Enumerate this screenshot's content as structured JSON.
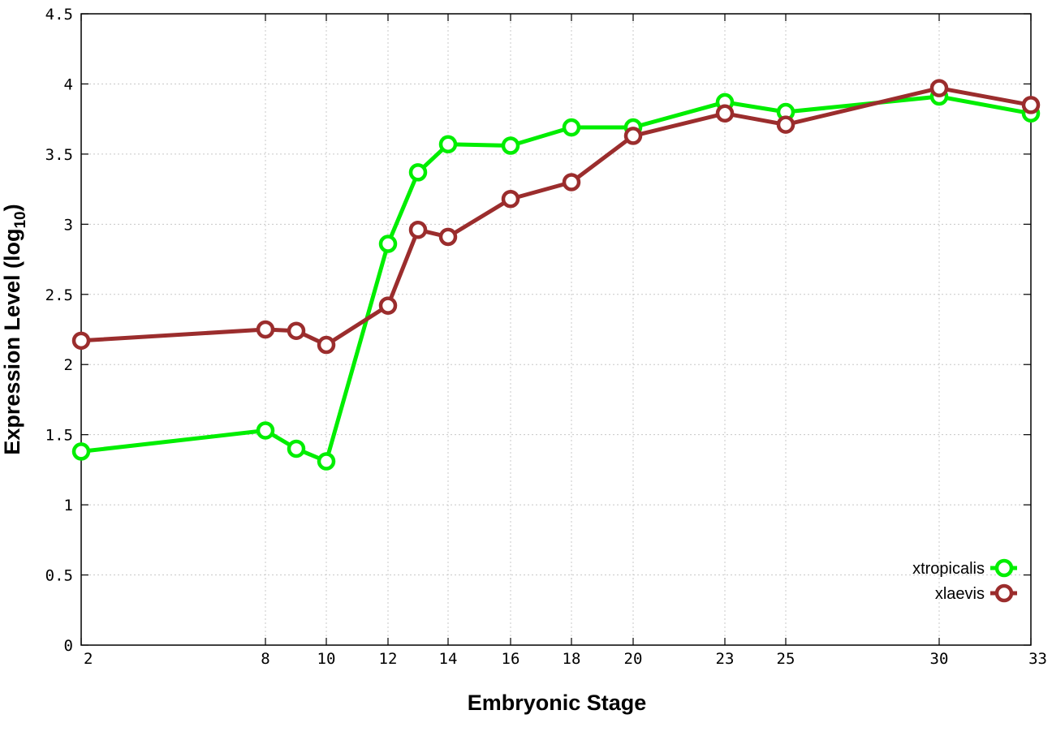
{
  "chart_data": {
    "type": "line",
    "xlabel": "Embryonic Stage",
    "ylabel_main": "Expression Level (log",
    "ylabel_sub": "10",
    "ylabel_close": ")",
    "ylim": [
      0,
      4.5
    ],
    "y_ticks": [
      0,
      0.5,
      1,
      1.5,
      2,
      2.5,
      3,
      3.5,
      4,
      4.5
    ],
    "y_tick_labels": [
      "0",
      "0.5",
      "1",
      "1.5",
      "2",
      "2.5",
      "3",
      "3.5",
      "4",
      "4.5"
    ],
    "x_ticks": [
      2,
      8,
      10,
      12,
      14,
      16,
      18,
      20,
      23,
      25,
      30,
      33
    ],
    "x_tick_labels": [
      "2",
      "8",
      "10",
      "12",
      "14",
      "16",
      "18",
      "20",
      "23",
      "25",
      "30",
      "33"
    ],
    "x_grid_stages": [
      8,
      10,
      12,
      14,
      16,
      18,
      20,
      23,
      25,
      30
    ],
    "grid": true,
    "legend_position": "bottom-right",
    "series": [
      {
        "name": "xtropicalis",
        "color": "#00ee00",
        "points": [
          {
            "stage": 2,
            "value": 1.38
          },
          {
            "stage": 8,
            "value": 1.53
          },
          {
            "stage": 9,
            "value": 1.4
          },
          {
            "stage": 10,
            "value": 1.31
          },
          {
            "stage": 12,
            "value": 2.86
          },
          {
            "stage": 13,
            "value": 3.37
          },
          {
            "stage": 14,
            "value": 3.57
          },
          {
            "stage": 16,
            "value": 3.56
          },
          {
            "stage": 18,
            "value": 3.69
          },
          {
            "stage": 20,
            "value": 3.69
          },
          {
            "stage": 23,
            "value": 3.87
          },
          {
            "stage": 25,
            "value": 3.8
          },
          {
            "stage": 30,
            "value": 3.91
          },
          {
            "stage": 33,
            "value": 3.79
          }
        ]
      },
      {
        "name": "xlaevis",
        "color": "#9b2d2d",
        "points": [
          {
            "stage": 2,
            "value": 2.17
          },
          {
            "stage": 8,
            "value": 2.25
          },
          {
            "stage": 9,
            "value": 2.24
          },
          {
            "stage": 10,
            "value": 2.14
          },
          {
            "stage": 12,
            "value": 2.42
          },
          {
            "stage": 13,
            "value": 2.96
          },
          {
            "stage": 14,
            "value": 2.91
          },
          {
            "stage": 16,
            "value": 3.18
          },
          {
            "stage": 18,
            "value": 3.3
          },
          {
            "stage": 20,
            "value": 3.63
          },
          {
            "stage": 23,
            "value": 3.79
          },
          {
            "stage": 25,
            "value": 3.71
          },
          {
            "stage": 30,
            "value": 3.97
          },
          {
            "stage": 33,
            "value": 3.85
          }
        ]
      }
    ]
  }
}
